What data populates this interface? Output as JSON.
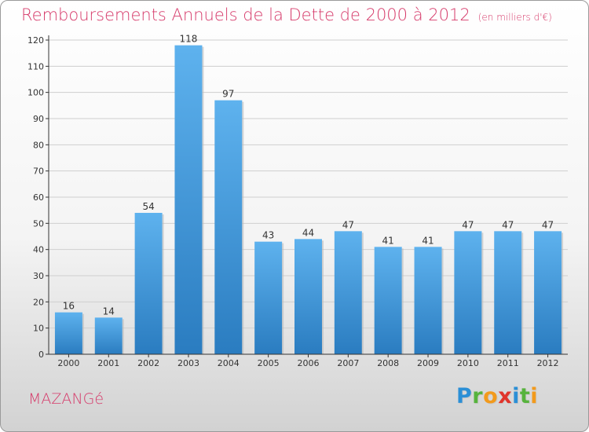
{
  "header": {
    "title": "Remboursements Annuels de la Dette de 2000 à 2012",
    "unit": "(en milliers d'€)"
  },
  "footer": {
    "city": "MAZANGé",
    "logo_letters": [
      {
        "char": "P",
        "color": "#2b8fd6"
      },
      {
        "char": "r",
        "color": "#57b33d"
      },
      {
        "char": "o",
        "color": "#f29a1c"
      },
      {
        "char": "x",
        "color": "#e0342b"
      },
      {
        "char": "i",
        "color": "#2b8fd6"
      },
      {
        "char": "t",
        "color": "#57b33d"
      },
      {
        "char": "i",
        "color": "#f29a1c"
      }
    ]
  },
  "colors": {
    "title": "#d63a6a",
    "bar_top": "#5eb2ee",
    "bar_bottom": "#2a7cc0",
    "grid": "#cfcfcf"
  },
  "chart_data": {
    "type": "bar",
    "title": "Remboursements Annuels de la Dette de 2000 à 2012",
    "unit": "(en milliers d'€)",
    "categories": [
      "2000",
      "2001",
      "2002",
      "2003",
      "2004",
      "2005",
      "2006",
      "2007",
      "2008",
      "2009",
      "2010",
      "2011",
      "2012"
    ],
    "values": [
      16,
      14,
      54,
      118,
      97,
      43,
      44,
      47,
      41,
      41,
      47,
      47,
      47
    ],
    "ylim": [
      0,
      120
    ],
    "yticks": [
      0,
      10,
      20,
      30,
      40,
      50,
      60,
      70,
      80,
      90,
      100,
      110,
      120
    ],
    "grid": true,
    "data_labels": true
  }
}
